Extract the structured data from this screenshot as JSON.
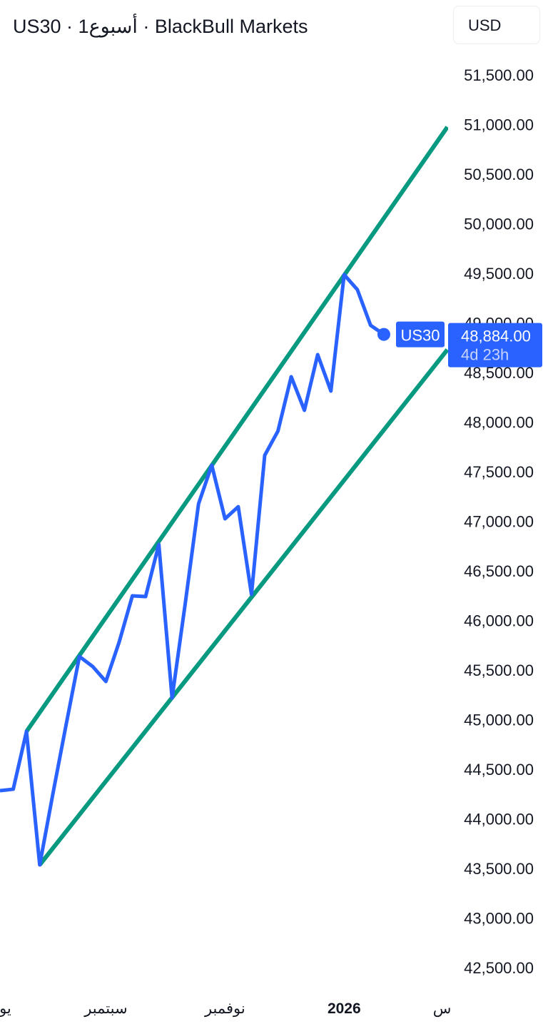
{
  "header": {
    "title": "US30 · 1أسبوع · BlackBull Markets",
    "currency": "USD"
  },
  "chart_data": {
    "type": "line",
    "symbol": "US30",
    "series": [
      {
        "values": [
          44284,
          44299,
          44881,
          43536,
          44255,
          44953,
          45637,
          45536,
          45385,
          45781,
          46248,
          46241,
          46766,
          45219,
          46176,
          47176,
          47565,
          47025,
          47147,
          46263,
          47665,
          47910,
          48457,
          48119,
          48680,
          48313,
          49486,
          49335,
          48975,
          48884
        ]
      }
    ],
    "series_color": "#2962ff",
    "channel": {
      "color": "#089981",
      "upper": [
        [
          2,
          44881
        ],
        [
          33.8,
          50975
        ]
      ],
      "lower": [
        [
          3,
          43536
        ],
        [
          33.8,
          48730
        ]
      ]
    },
    "ylim": [
      42200,
      51800
    ],
    "yticks": [
      51500,
      51000,
      50500,
      50000,
      49500,
      49000,
      48500,
      48000,
      47500,
      47000,
      46500,
      46000,
      45500,
      45000,
      44500,
      44000,
      43500,
      43000,
      42500
    ],
    "xticks": [
      {
        "i": 0.4,
        "label": "يو",
        "bold": false
      },
      {
        "i": 8,
        "label": "سبتمبر",
        "bold": false
      },
      {
        "i": 17,
        "label": "نوفمبر",
        "bold": false
      },
      {
        "i": 26,
        "label": "2026",
        "bold": true
      },
      {
        "i": 33.4,
        "label": "س",
        "bold": false
      }
    ],
    "last_price": {
      "symbol_label": "US30",
      "value": "48,884.00",
      "countdown": "4d 23h"
    },
    "grid": false
  }
}
